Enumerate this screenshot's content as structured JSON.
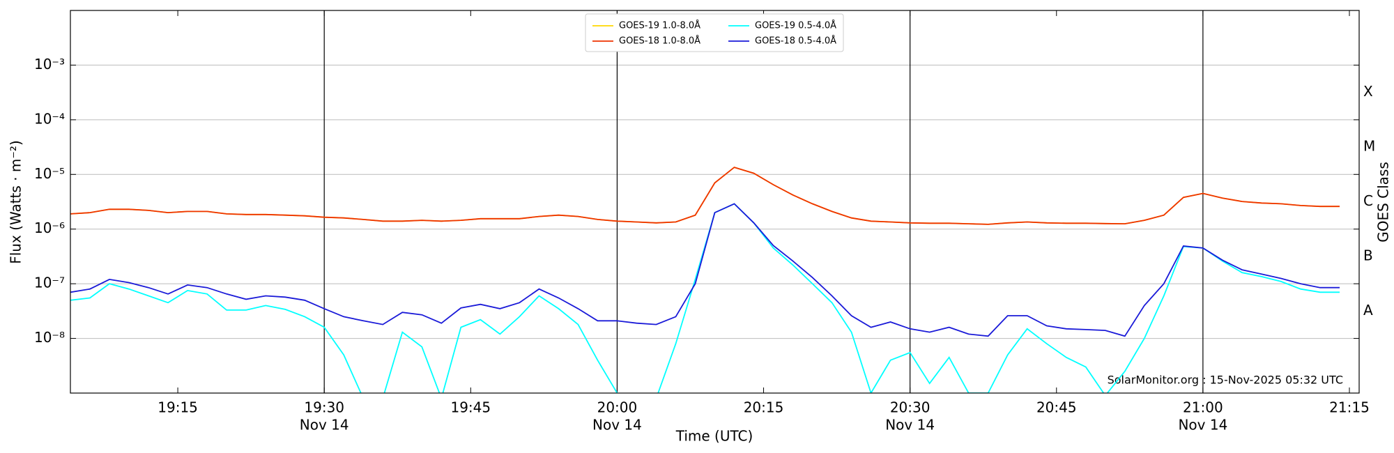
{
  "chart_data": {
    "type": "line",
    "ylabel": "Flux (Watts · m⁻²)",
    "xlabel": "Time (UTC)",
    "y2label": "GOES Class",
    "annotation": "SolarMonitor.org : 15-Nov-2025 05:32 UTC",
    "log_y": true,
    "grid": true,
    "x": [
      "19:04",
      "19:06",
      "19:08",
      "19:10",
      "19:12",
      "19:14",
      "19:16",
      "19:18",
      "19:20",
      "19:22",
      "19:24",
      "19:26",
      "19:28",
      "19:30",
      "19:32",
      "19:34",
      "19:36",
      "19:38",
      "19:40",
      "19:42",
      "19:44",
      "19:46",
      "19:48",
      "19:50",
      "19:52",
      "19:54",
      "19:56",
      "19:58",
      "20:00",
      "20:02",
      "20:04",
      "20:06",
      "20:08",
      "20:10",
      "20:12",
      "20:14",
      "20:16",
      "20:18",
      "20:20",
      "20:22",
      "20:24",
      "20:26",
      "20:28",
      "20:30",
      "20:32",
      "20:34",
      "20:36",
      "20:38",
      "20:40",
      "20:42",
      "20:44",
      "20:46",
      "20:48",
      "20:50",
      "20:52",
      "20:54",
      "20:56",
      "20:58",
      "21:00",
      "21:02",
      "21:04",
      "21:06",
      "21:08",
      "21:10",
      "21:12",
      "21:14"
    ],
    "xlim": [
      "19:04",
      "21:16"
    ],
    "xticks": [
      "19:15",
      "19:30",
      "19:45",
      "20:00",
      "20:15",
      "20:30",
      "20:45",
      "21:00",
      "21:15"
    ],
    "xtick_dates": [
      null,
      "Nov 14",
      null,
      "Nov 14",
      null,
      "Nov 14",
      null,
      "Nov 14",
      null
    ],
    "vlines": [
      "19:30",
      "20:00",
      "20:30",
      "21:00"
    ],
    "ylim": [
      1e-09,
      0.01
    ],
    "yticks": [
      {
        "value": 1e-08,
        "label": "10⁻⁸"
      },
      {
        "value": 1e-07,
        "label": "10⁻⁷"
      },
      {
        "value": 1e-06,
        "label": "10⁻⁶"
      },
      {
        "value": 1e-05,
        "label": "10⁻⁵"
      },
      {
        "value": 0.0001,
        "label": "10⁻⁴"
      },
      {
        "value": 0.001,
        "label": "10⁻³"
      }
    ],
    "y2lim": [
      1e-09,
      0.01
    ],
    "y2ticks": [
      {
        "value": 3.1623e-08,
        "label": "A"
      },
      {
        "value": 3.1623e-07,
        "label": "B"
      },
      {
        "value": 3.1623e-06,
        "label": "C"
      },
      {
        "value": 3.1623e-05,
        "label": "M"
      },
      {
        "value": 0.00031623,
        "label": "X"
      }
    ],
    "series": [
      {
        "name": "GOES-19 1.0-8.0Å",
        "color": "#ffd700",
        "values": [
          1.9e-06,
          2e-06,
          2.3e-06,
          2.3e-06,
          2.2e-06,
          2e-06,
          2.1e-06,
          2.1e-06,
          1.9e-06,
          1.85e-06,
          1.85e-06,
          1.8e-06,
          1.75e-06,
          1.65e-06,
          1.6e-06,
          1.5e-06,
          1.4e-06,
          1.4e-06,
          1.45e-06,
          1.4e-06,
          1.45e-06,
          1.55e-06,
          1.55e-06,
          1.55e-06,
          1.7e-06,
          1.8e-06,
          1.7e-06,
          1.5e-06,
          1.4e-06,
          1.35e-06,
          1.3e-06,
          1.35e-06,
          1.8e-06,
          7e-06,
          1.35e-05,
          1.05e-05,
          6.5e-06,
          4.2e-06,
          2.9e-06,
          2.1e-06,
          1.6e-06,
          1.4e-06,
          1.35e-06,
          1.3e-06,
          1.28e-06,
          1.28e-06,
          1.25e-06,
          1.22e-06,
          1.3e-06,
          1.35e-06,
          1.3e-06,
          1.28e-06,
          1.28e-06,
          1.26e-06,
          1.25e-06,
          1.45e-06,
          1.8e-06,
          3.8e-06,
          4.5e-06,
          3.7e-06,
          3.2e-06,
          3e-06,
          2.9e-06,
          2.7e-06,
          2.6e-06,
          2.6e-06
        ]
      },
      {
        "name": "GOES-18 1.0-8.0Å",
        "color": "#ee3300",
        "values": [
          1.9e-06,
          2e-06,
          2.3e-06,
          2.3e-06,
          2.2e-06,
          2e-06,
          2.1e-06,
          2.1e-06,
          1.9e-06,
          1.85e-06,
          1.85e-06,
          1.8e-06,
          1.75e-06,
          1.65e-06,
          1.6e-06,
          1.5e-06,
          1.4e-06,
          1.4e-06,
          1.45e-06,
          1.4e-06,
          1.45e-06,
          1.55e-06,
          1.55e-06,
          1.55e-06,
          1.7e-06,
          1.8e-06,
          1.7e-06,
          1.5e-06,
          1.4e-06,
          1.35e-06,
          1.3e-06,
          1.35e-06,
          1.8e-06,
          7e-06,
          1.35e-05,
          1.05e-05,
          6.5e-06,
          4.2e-06,
          2.9e-06,
          2.1e-06,
          1.6e-06,
          1.4e-06,
          1.35e-06,
          1.3e-06,
          1.28e-06,
          1.28e-06,
          1.25e-06,
          1.22e-06,
          1.3e-06,
          1.35e-06,
          1.3e-06,
          1.28e-06,
          1.28e-06,
          1.26e-06,
          1.25e-06,
          1.45e-06,
          1.8e-06,
          3.8e-06,
          4.5e-06,
          3.7e-06,
          3.2e-06,
          3e-06,
          2.9e-06,
          2.7e-06,
          2.6e-06,
          2.6e-06
        ]
      },
      {
        "name": "GOES-19 0.5-4.0Å",
        "color": "#00ffff",
        "values": [
          5e-08,
          5.5e-08,
          1e-07,
          8e-08,
          6e-08,
          4.5e-08,
          7.5e-08,
          6.5e-08,
          3.3e-08,
          3.3e-08,
          4e-08,
          3.4e-08,
          2.5e-08,
          1.6e-08,
          5e-09,
          8e-10,
          8e-10,
          1.3e-08,
          7e-09,
          8e-10,
          1.6e-08,
          2.2e-08,
          1.2e-08,
          2.5e-08,
          6e-08,
          3.5e-08,
          1.8e-08,
          4e-09,
          1e-09,
          8e-10,
          8e-10,
          8e-09,
          1.2e-07,
          2e-06,
          2.9e-06,
          1.3e-06,
          4.5e-07,
          2.2e-07,
          1e-07,
          4.5e-08,
          1.3e-08,
          1e-09,
          4e-09,
          5.5e-09,
          1.5e-09,
          4.5e-09,
          1e-09,
          1e-09,
          5e-09,
          1.5e-08,
          8e-09,
          4.5e-09,
          3e-09,
          9e-10,
          2.5e-09,
          1e-08,
          6e-08,
          4.8e-07,
          4.5e-07,
          2.6e-07,
          1.6e-07,
          1.35e-07,
          1.1e-07,
          8e-08,
          7e-08,
          7e-08
        ]
      },
      {
        "name": "GOES-18 0.5-4.0Å",
        "color": "#1a1ad8",
        "values": [
          7e-08,
          8e-08,
          1.2e-07,
          1.05e-07,
          8.5e-08,
          6.5e-08,
          9.5e-08,
          8.5e-08,
          6.5e-08,
          5.2e-08,
          6e-08,
          5.7e-08,
          5e-08,
          3.5e-08,
          2.5e-08,
          2.1e-08,
          1.8e-08,
          3e-08,
          2.7e-08,
          1.9e-08,
          3.6e-08,
          4.2e-08,
          3.5e-08,
          4.5e-08,
          8e-08,
          5.5e-08,
          3.5e-08,
          2.1e-08,
          2.1e-08,
          1.9e-08,
          1.8e-08,
          2.5e-08,
          1e-07,
          2e-06,
          2.9e-06,
          1.3e-06,
          5e-07,
          2.6e-07,
          1.3e-07,
          6e-08,
          2.6e-08,
          1.6e-08,
          2e-08,
          1.5e-08,
          1.3e-08,
          1.6e-08,
          1.2e-08,
          1.1e-08,
          2.6e-08,
          2.6e-08,
          1.7e-08,
          1.5e-08,
          1.45e-08,
          1.4e-08,
          1.1e-08,
          4e-08,
          1e-07,
          4.9e-07,
          4.5e-07,
          2.7e-07,
          1.8e-07,
          1.5e-07,
          1.25e-07,
          1e-07,
          8.5e-08,
          8.5e-08
        ]
      }
    ]
  }
}
